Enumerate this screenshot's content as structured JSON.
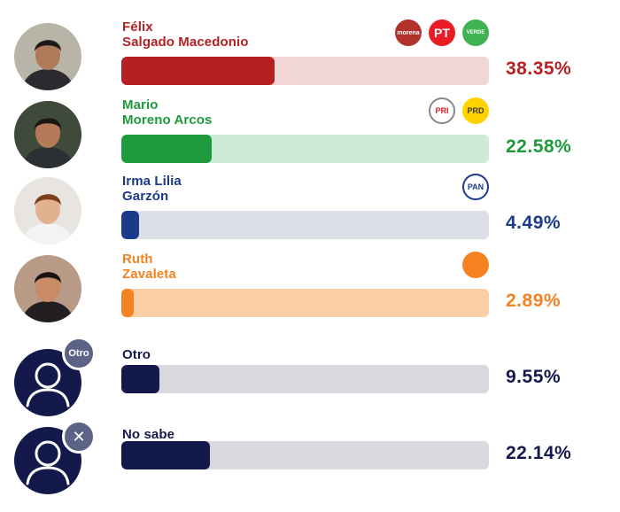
{
  "chart_data": {
    "type": "bar",
    "orientation": "horizontal",
    "xlim": [
      0,
      100
    ],
    "unit": "%",
    "candidates": [
      {
        "id": "felix",
        "name": "Félix\nSalgado Macedonio",
        "value": 38.35,
        "label": "38.35%",
        "color": "#b52022",
        "track_color": "#f2d6d6",
        "name_color": "#b52022",
        "parties": [
          {
            "name": "morena",
            "text": "morena",
            "color": "#b0322b"
          },
          {
            "name": "pt",
            "text": "PT",
            "color": "#e81c24"
          },
          {
            "name": "verde",
            "text": "VERDE",
            "color": "#3fb34f"
          }
        ]
      },
      {
        "id": "mario",
        "name": "Mario\nMoreno Arcos",
        "value": 22.58,
        "label": "22.58%",
        "color": "#1e9a3c",
        "track_color": "#cde9d7",
        "name_color": "#1e9a3c",
        "parties": [
          {
            "name": "pri",
            "text": "PRI",
            "color": "#ffffff"
          },
          {
            "name": "prd",
            "text": "PRD",
            "color": "#ffd300"
          }
        ]
      },
      {
        "id": "irma",
        "name": "Irma Lilia\nGarzón",
        "value": 4.49,
        "label": "4.49%",
        "color": "#1d3a8a",
        "track_color": "#dcdfe8",
        "name_color": "#1d3a8a",
        "parties": [
          {
            "name": "pan",
            "text": "PAN",
            "color": "#ffffff"
          }
        ]
      },
      {
        "id": "ruth",
        "name": "Ruth\nZavaleta",
        "value": 2.89,
        "label": "2.89%",
        "color": "#f58220",
        "track_color": "#fbcfa6",
        "name_color": "#f58220",
        "parties": [
          {
            "name": "movimiento-ciudadano",
            "text": "",
            "color": "#f58220"
          }
        ]
      },
      {
        "id": "otro",
        "name": "Otro",
        "value": 9.55,
        "label": "9.55%",
        "color": "#131a4b",
        "track_color": "#d8d8de",
        "name_color": "#131a4b",
        "badge": "Otro",
        "parties": []
      },
      {
        "id": "nosabe",
        "name": "No sabe",
        "value": 22.14,
        "label": "22.14%",
        "color": "#131a4b",
        "track_color": "#d8d8de",
        "name_color": "#131a4b",
        "badge": "✕",
        "parties": []
      }
    ]
  }
}
